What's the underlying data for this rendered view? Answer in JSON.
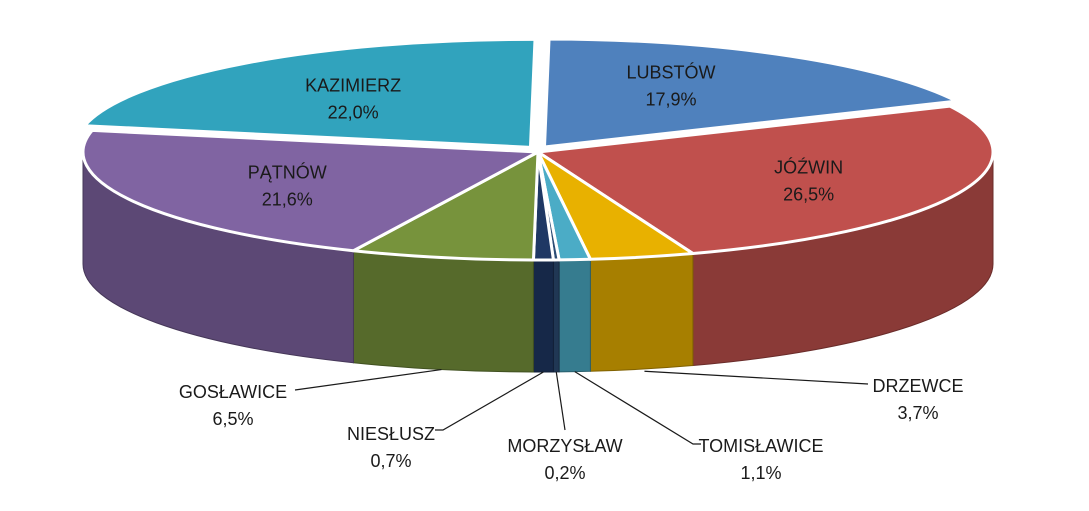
{
  "chart_data": {
    "type": "pie",
    "title": "",
    "slices": [
      {
        "label": "LUBSTÓW",
        "value_text": "17,9%",
        "value": 17.9,
        "color": "#4f81bd"
      },
      {
        "label": "JÓŹWIN",
        "value_text": "26,5%",
        "value": 26.5,
        "color": "#c0504d"
      },
      {
        "label": "DRZEWCE",
        "value_text": "3,7%",
        "value": 3.7,
        "color": "#e8b100"
      },
      {
        "label": "TOMISŁAWICE",
        "value_text": "1,1%",
        "value": 1.1,
        "color": "#4bacc6"
      },
      {
        "label": "MORZYSŁAW",
        "value_text": "0,2%",
        "value": 0.2,
        "color": "#2c4d75"
      },
      {
        "label": "NIESŁUSZ",
        "value_text": "0,7%",
        "value": 0.7,
        "color": "#1f3864"
      },
      {
        "label": "GOSŁAWICE",
        "value_text": "6,5%",
        "value": 6.5,
        "color": "#77933c"
      },
      {
        "label": "PĄTNÓW",
        "value_text": "21,6%",
        "value": 21.6,
        "color": "#8064a2"
      },
      {
        "label": "KAZIMIERZ",
        "value_text": "22,0%",
        "value": 22.0,
        "color": "#31a3bd"
      }
    ],
    "style": "3d-exploded",
    "legend": "none"
  }
}
